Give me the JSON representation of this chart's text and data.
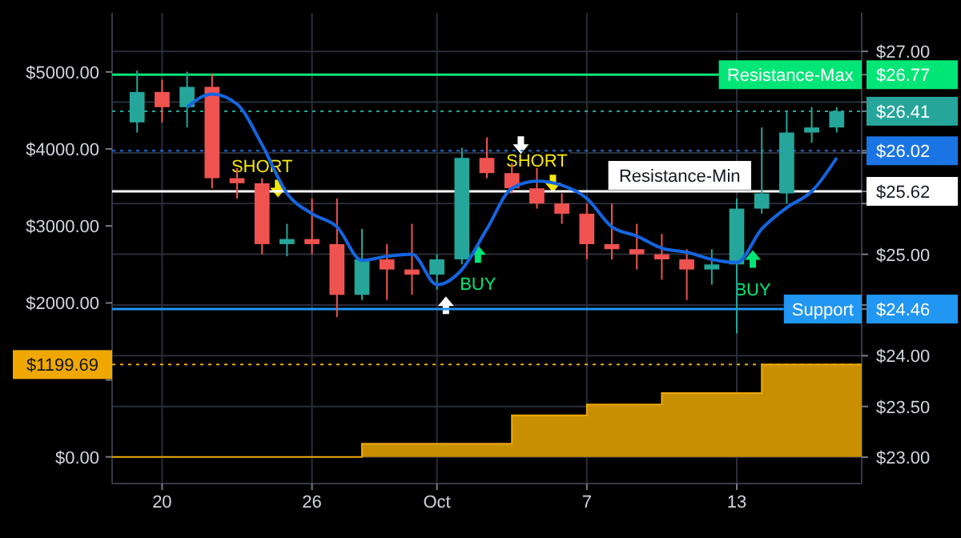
{
  "chart_data": {
    "type": "candlestick",
    "xlim": [
      "--09-18",
      "--10-18"
    ],
    "xticks": [
      {
        "value": "--09-20",
        "label": "20"
      },
      {
        "value": "--09-26",
        "label": "26"
      },
      {
        "value": "--10-01",
        "label": "Oct"
      },
      {
        "value": "--10-07",
        "label": "7"
      },
      {
        "value": "--10-13",
        "label": "13"
      }
    ],
    "ylim": [
      22.74,
      27.38
    ],
    "yticks": [
      {
        "value": 23,
        "label": "$23.00"
      },
      {
        "value": 23.5,
        "label": "$23.50"
      },
      {
        "value": 24,
        "label": "$24.00"
      },
      {
        "value": 24.5,
        "label": null
      },
      {
        "value": 25,
        "label": "$25.00"
      },
      {
        "value": 25.5,
        "label": null
      },
      {
        "value": 26,
        "label": null
      },
      {
        "value": 26.5,
        "label": null
      },
      {
        "value": 27,
        "label": "$27.00"
      },
      {
        "value": 26.77,
        "label": "$26.77"
      },
      {
        "value": 26.41,
        "label": "$26.41"
      },
      {
        "value": 26.02,
        "label": "$26.02"
      },
      {
        "value": 25.62,
        "label": "$25.62"
      },
      {
        "value": 24.46,
        "label": "$24.46"
      }
    ],
    "y2lim": [
      -346,
      5768
    ],
    "y2ticks": [
      {
        "value": 0,
        "label": "$0.00"
      },
      {
        "value": 1000,
        "label": null
      },
      {
        "value": 2000,
        "label": "$2000.00"
      },
      {
        "value": 3000,
        "label": "$3000.00"
      },
      {
        "value": 4000,
        "label": "$4000.00"
      },
      {
        "value": 5000,
        "label": "$5000.00"
      },
      {
        "value": 1199.69,
        "label": "$1199.69"
      }
    ],
    "grid": true,
    "series": [
      {
        "x": [
          "--09-19",
          "--09-20",
          "--09-21",
          "--09-22",
          "--09-23",
          "--09-24",
          "--09-25",
          "--09-26",
          "--09-27",
          "--09-28",
          "--09-29",
          "--09-30",
          "--10-01",
          "--10-02",
          "--10-03",
          "--10-04",
          "--10-05",
          "--10-06",
          "--10-07",
          "--10-08",
          "--10-09",
          "--10-10",
          "--10-11",
          "--10-12",
          "--10-13",
          "--10-14",
          "--10-15",
          "--10-16",
          "--10-17"
        ],
        "ohlc": [
          [
            26.3,
            26.81,
            26.2,
            26.6
          ],
          [
            26.6,
            26.72,
            26.3,
            26.45
          ],
          [
            26.45,
            26.8,
            26.25,
            26.65
          ],
          [
            26.65,
            26.78,
            25.65,
            25.75
          ],
          [
            25.75,
            25.85,
            25.55,
            25.7
          ],
          [
            25.7,
            25.75,
            25.0,
            25.1
          ],
          [
            25.1,
            25.3,
            24.98,
            25.15
          ],
          [
            25.15,
            25.55,
            25.0,
            25.1
          ],
          [
            25.1,
            25.55,
            24.38,
            24.6
          ],
          [
            24.6,
            25.25,
            24.55,
            24.95
          ],
          [
            24.95,
            25.1,
            24.55,
            24.85
          ],
          [
            24.85,
            25.3,
            24.6,
            24.8
          ],
          [
            24.8,
            25.0,
            24.65,
            24.95
          ],
          [
            24.95,
            26.05,
            24.9,
            25.95
          ],
          [
            25.95,
            26.15,
            25.75,
            25.8
          ],
          [
            25.8,
            25.9,
            25.6,
            25.65
          ],
          [
            25.65,
            25.85,
            25.45,
            25.5
          ],
          [
            25.5,
            25.6,
            25.3,
            25.4
          ],
          [
            25.4,
            25.5,
            24.95,
            25.1
          ],
          [
            25.1,
            25.5,
            24.95,
            25.05
          ],
          [
            25.05,
            25.3,
            24.85,
            25.0
          ],
          [
            25.0,
            25.2,
            24.75,
            24.95
          ],
          [
            24.95,
            25.05,
            24.55,
            24.85
          ],
          [
            24.85,
            25.05,
            24.7,
            24.9
          ],
          [
            24.9,
            25.55,
            24.22,
            25.45
          ],
          [
            25.45,
            26.25,
            25.4,
            25.6
          ],
          [
            25.6,
            26.4,
            25.5,
            26.2
          ],
          [
            26.2,
            26.45,
            26.1,
            26.25
          ],
          [
            26.25,
            26.45,
            26.2,
            26.41
          ]
        ]
      },
      {
        "type": "line",
        "color": "#1565e0",
        "x": [
          "--09-21",
          "--09-22",
          "--09-23",
          "--09-24",
          "--09-25",
          "--09-26",
          "--09-27",
          "--09-28",
          "--09-29",
          "--09-30",
          "--10-01",
          "--10-02",
          "--10-03",
          "--10-04",
          "--10-05",
          "--10-06",
          "--10-07",
          "--10-08",
          "--10-09",
          "--10-10",
          "--10-11",
          "--10-12",
          "--10-13",
          "--10-14",
          "--10-15",
          "--10-16",
          "--10-17"
        ],
        "values": [
          26.45,
          26.58,
          26.48,
          26.08,
          25.6,
          25.4,
          25.27,
          24.94,
          24.98,
          25.0,
          24.7,
          24.85,
          25.25,
          25.65,
          25.72,
          25.68,
          25.55,
          25.27,
          25.18,
          25.06,
          25.02,
          24.95,
          24.92,
          25.25,
          25.46,
          25.62,
          25.95
        ]
      },
      {
        "type": "area",
        "axis": "y2",
        "color": "#c89000",
        "x": [
          "--09-18",
          "--09-28",
          "--09-28",
          "--10-04",
          "--10-04",
          "--10-07",
          "--10-07",
          "--10-10",
          "--10-10",
          "--10-14",
          "--10-14",
          "--10-18"
        ],
        "values": [
          0,
          0,
          170,
          170,
          540,
          540,
          680,
          680,
          830,
          830,
          1199.69,
          1199.69
        ]
      }
    ],
    "ref_lines": [
      {
        "axis": "y",
        "value": 26.77,
        "label": "Resistance-Max",
        "color": "#00e676",
        "line_style": "solid"
      },
      {
        "axis": "y",
        "value": 26.41,
        "color": "#26a69a",
        "line_style": "dotted"
      },
      {
        "axis": "y",
        "value": 26.02,
        "color": "#1b74e4",
        "line_style": "dotted"
      },
      {
        "axis": "y",
        "value": 25.62,
        "label": "Resistance-Min",
        "color": "#ffffff",
        "line_style": "solid"
      },
      {
        "axis": "y",
        "value": 24.46,
        "label": "Support",
        "color": "#2196f3",
        "line_style": "solid"
      },
      {
        "axis": "y2",
        "value": 1199.69,
        "color": "#f0a800",
        "line_style": "dotted"
      }
    ],
    "annotations": [
      {
        "text": "SHORT",
        "x": "--09-24",
        "y": 25.75
      },
      {
        "text": "BUY",
        "x": "--10-02",
        "y": 24.9
      },
      {
        "text": "SHORT",
        "x": "--10-05",
        "y": 25.8
      },
      {
        "text": "BUY",
        "x": "--10-13",
        "y": 24.85
      }
    ]
  }
}
